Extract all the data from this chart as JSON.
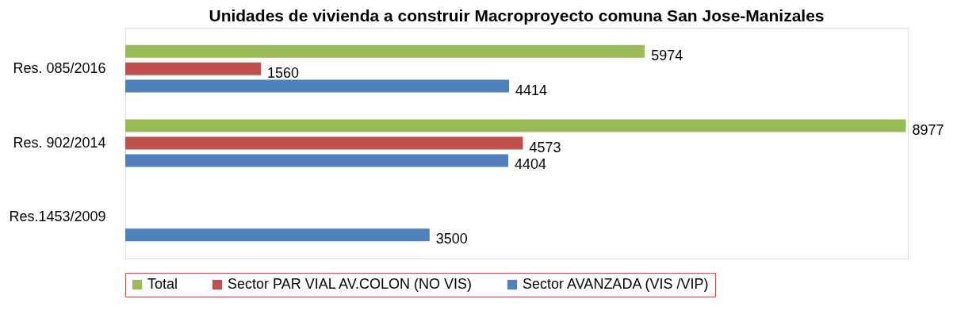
{
  "chart_data": {
    "type": "bar",
    "orientation": "horizontal",
    "title": "Unidades de vivienda a construir Macroproyecto comuna San Jose-Manizales",
    "categories": [
      "Res. 085/2016",
      "Res. 902/2014",
      "Res.1453/2009"
    ],
    "series": [
      {
        "name": "Total",
        "color": "#9bbb59",
        "values": [
          5974,
          8977,
          null
        ]
      },
      {
        "name": "Sector PAR VIAL AV.COLON (NO VIS)",
        "color": "#c0504d",
        "values": [
          1560,
          4573,
          null
        ]
      },
      {
        "name": "Sector AVANZADA (VIS /VIP)",
        "color": "#4f81bd",
        "values": [
          4414,
          4404,
          3500
        ]
      }
    ],
    "data_labels": true,
    "legend": "bottom",
    "grid": false,
    "tick_labels": "y"
  }
}
